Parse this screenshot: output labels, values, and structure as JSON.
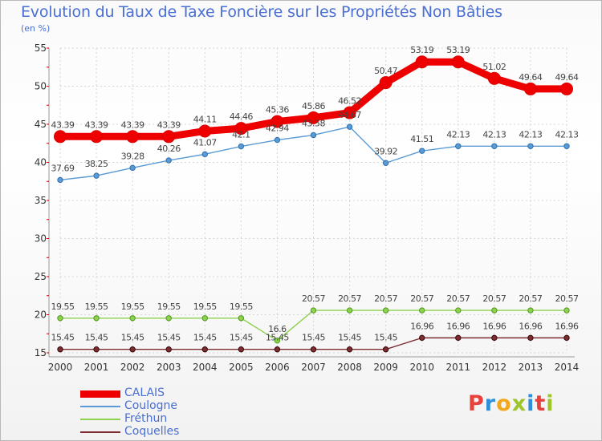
{
  "title": "Evolution du Taux de Taxe Foncière sur les Propriétés Non Bâties",
  "subtitle": "(en %)",
  "logo": {
    "text": "Proxiti",
    "colors": [
      "#e8403a",
      "#2f8fd8",
      "#f2a81d",
      "#9ec628",
      "#2f8fd8",
      "#e8403a",
      "#9ec628"
    ]
  },
  "chart_data": {
    "type": "line",
    "title": "Evolution du Taux de Taxe Foncière sur les Propriétés Non Bâties",
    "ylabel": "(en %)",
    "x": [
      2000,
      2001,
      2002,
      2003,
      2004,
      2005,
      2006,
      2007,
      2008,
      2009,
      2010,
      2011,
      2012,
      2013,
      2014
    ],
    "ylim": [
      15,
      55
    ],
    "yticks": [
      15,
      20,
      25,
      30,
      35,
      40,
      45,
      50,
      55
    ],
    "grid": true,
    "legend_position": "bottom-left",
    "series": [
      {
        "name": "CALAIS",
        "color": "#ee0000",
        "values": [
          43.39,
          43.39,
          43.39,
          43.39,
          44.11,
          44.46,
          45.36,
          45.86,
          46.52,
          50.47,
          53.19,
          53.19,
          51.02,
          49.64,
          49.64
        ],
        "labels": [
          "43.39",
          "43.39",
          "43.39",
          "43.39",
          "44.11",
          "44.46",
          "45.36",
          "45.86",
          "46.52",
          "50.47",
          "53.19",
          "53.19",
          "51.02",
          "49.64",
          "49.64"
        ]
      },
      {
        "name": "Coulogne",
        "color": "#5b9bd5",
        "values": [
          37.69,
          38.25,
          39.28,
          40.26,
          41.07,
          42.1,
          42.94,
          43.58,
          44.67,
          39.92,
          41.51,
          42.13,
          42.13,
          42.13,
          42.13
        ],
        "labels": [
          "37.69",
          "38.25",
          "39.28",
          "40.26",
          "41.07",
          "42.1",
          "42.94",
          "43.58",
          "44.67",
          "39.92",
          "41.51",
          "42.13",
          "42.13",
          "42.13",
          "42.13"
        ]
      },
      {
        "name": "Fréthun",
        "color": "#8fd14f",
        "values": [
          19.55,
          19.55,
          19.55,
          19.55,
          19.55,
          19.55,
          16.6,
          20.57,
          20.57,
          20.57,
          20.57,
          20.57,
          20.57,
          20.57,
          20.57
        ],
        "labels": [
          "19.55",
          "19.55",
          "19.55",
          "19.55",
          "19.55",
          "19.55",
          "16.6",
          "20.57",
          "20.57",
          "20.57",
          "20.57",
          "20.57",
          "20.57",
          "20.57",
          "20.57"
        ]
      },
      {
        "name": "Coquelles",
        "color": "#7b2d32",
        "values": [
          15.45,
          15.45,
          15.45,
          15.45,
          15.45,
          15.45,
          15.45,
          15.45,
          15.45,
          15.45,
          16.96,
          16.96,
          16.96,
          16.96,
          16.96
        ],
        "labels": [
          "15.45",
          "15.45",
          "15.45",
          "15.45",
          "15.45",
          "15.45",
          "15.45",
          "15.45",
          "15.45",
          "15.45",
          "16.96",
          "16.96",
          "16.96",
          "16.96",
          "16.96"
        ]
      }
    ]
  }
}
